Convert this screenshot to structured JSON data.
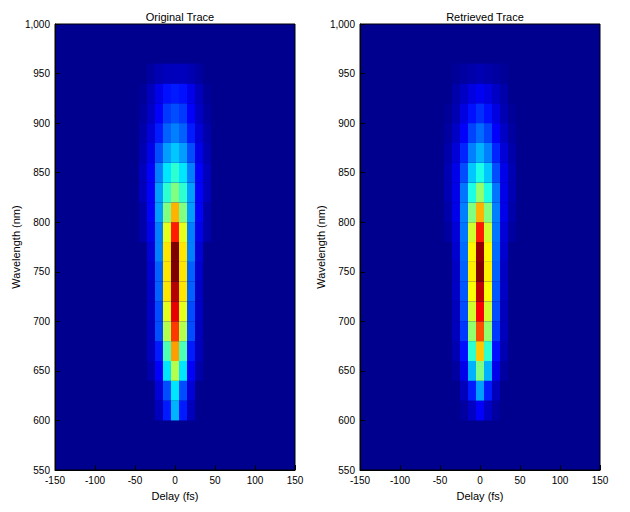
{
  "chart_data": [
    {
      "type": "heatmap",
      "title": "Original Trace",
      "x_label": "Delay (fs)",
      "y_label": "Wavelength (nm)",
      "xlim": [
        -150,
        150
      ],
      "ylim": [
        550,
        1000
      ],
      "xticks": [
        -150,
        -100,
        -50,
        0,
        50,
        100,
        150
      ],
      "yticks": [
        550,
        600,
        650,
        700,
        750,
        800,
        850,
        900,
        950,
        1000
      ],
      "zlim": [
        0,
        1
      ],
      "x": [
        -40,
        -30,
        -20,
        -10,
        0,
        10,
        20,
        30,
        40
      ],
      "y": [
        610,
        630,
        650,
        670,
        690,
        710,
        730,
        750,
        770,
        790,
        810,
        830,
        850,
        870,
        890,
        910,
        930,
        950
      ],
      "z": [
        [
          0,
          0,
          0.05,
          0.15,
          0.3,
          0.15,
          0.05,
          0,
          0
        ],
        [
          0,
          0,
          0.08,
          0.2,
          0.35,
          0.2,
          0.08,
          0,
          0
        ],
        [
          0,
          0.03,
          0.12,
          0.35,
          0.55,
          0.35,
          0.12,
          0.03,
          0
        ],
        [
          0,
          0.05,
          0.15,
          0.45,
          0.72,
          0.45,
          0.15,
          0.05,
          0
        ],
        [
          0,
          0.05,
          0.2,
          0.55,
          0.82,
          0.55,
          0.2,
          0.05,
          0
        ],
        [
          0,
          0.06,
          0.2,
          0.6,
          0.9,
          0.6,
          0.2,
          0.06,
          0
        ],
        [
          0,
          0.06,
          0.22,
          0.65,
          0.95,
          0.65,
          0.22,
          0.06,
          0
        ],
        [
          0,
          0.07,
          0.22,
          0.65,
          1.0,
          0.65,
          0.22,
          0.07,
          0
        ],
        [
          0,
          0.08,
          0.25,
          0.65,
          1.0,
          0.65,
          0.25,
          0.08,
          0
        ],
        [
          0.03,
          0.1,
          0.25,
          0.6,
          0.85,
          0.6,
          0.25,
          0.1,
          0.03
        ],
        [
          0.03,
          0.12,
          0.28,
          0.5,
          0.7,
          0.5,
          0.28,
          0.12,
          0.03
        ],
        [
          0.05,
          0.12,
          0.28,
          0.42,
          0.5,
          0.42,
          0.28,
          0.12,
          0.05
        ],
        [
          0.05,
          0.12,
          0.25,
          0.35,
          0.42,
          0.35,
          0.25,
          0.12,
          0.05
        ],
        [
          0.04,
          0.1,
          0.2,
          0.28,
          0.32,
          0.28,
          0.2,
          0.1,
          0.04
        ],
        [
          0.03,
          0.08,
          0.15,
          0.22,
          0.25,
          0.22,
          0.15,
          0.08,
          0.03
        ],
        [
          0.02,
          0.06,
          0.12,
          0.18,
          0.2,
          0.18,
          0.12,
          0.06,
          0.02
        ],
        [
          0.01,
          0.05,
          0.1,
          0.14,
          0.15,
          0.14,
          0.1,
          0.05,
          0.01
        ],
        [
          0,
          0.02,
          0.04,
          0.05,
          0.05,
          0.05,
          0.04,
          0.02,
          0
        ]
      ]
    },
    {
      "type": "heatmap",
      "title": "Retrieved Trace",
      "x_label": "Delay (fs)",
      "y_label": "Wavelength (nm)",
      "xlim": [
        -150,
        150
      ],
      "ylim": [
        550,
        1000
      ],
      "xticks": [
        -150,
        -100,
        -50,
        0,
        50,
        100,
        150
      ],
      "yticks": [
        550,
        600,
        650,
        700,
        750,
        800,
        850,
        900,
        950,
        1000
      ],
      "zlim": [
        0,
        1
      ],
      "x": [
        -40,
        -30,
        -20,
        -10,
        0,
        10,
        20,
        30,
        40
      ],
      "y": [
        610,
        630,
        650,
        670,
        690,
        710,
        730,
        750,
        770,
        790,
        810,
        830,
        850,
        870,
        890,
        910,
        930,
        950
      ],
      "z": [
        [
          0,
          0,
          0.02,
          0.06,
          0.12,
          0.06,
          0.02,
          0,
          0
        ],
        [
          0,
          0,
          0.05,
          0.15,
          0.28,
          0.15,
          0.05,
          0,
          0
        ],
        [
          0,
          0.02,
          0.1,
          0.3,
          0.5,
          0.3,
          0.1,
          0.02,
          0
        ],
        [
          0,
          0.04,
          0.14,
          0.42,
          0.68,
          0.42,
          0.14,
          0.04,
          0
        ],
        [
          0,
          0.05,
          0.18,
          0.52,
          0.8,
          0.52,
          0.18,
          0.05,
          0
        ],
        [
          0,
          0.05,
          0.2,
          0.58,
          0.88,
          0.58,
          0.2,
          0.05,
          0
        ],
        [
          0,
          0.06,
          0.21,
          0.62,
          0.94,
          0.62,
          0.21,
          0.06,
          0
        ],
        [
          0,
          0.06,
          0.22,
          0.64,
          1.0,
          0.64,
          0.22,
          0.06,
          0
        ],
        [
          0,
          0.07,
          0.23,
          0.63,
          0.98,
          0.63,
          0.23,
          0.07,
          0
        ],
        [
          0.02,
          0.08,
          0.24,
          0.58,
          0.85,
          0.58,
          0.24,
          0.08,
          0.02
        ],
        [
          0.03,
          0.1,
          0.25,
          0.5,
          0.7,
          0.5,
          0.25,
          0.1,
          0.03
        ],
        [
          0.04,
          0.1,
          0.24,
          0.4,
          0.52,
          0.4,
          0.24,
          0.1,
          0.04
        ],
        [
          0.04,
          0.1,
          0.2,
          0.32,
          0.4,
          0.32,
          0.2,
          0.1,
          0.04
        ],
        [
          0.03,
          0.08,
          0.16,
          0.25,
          0.3,
          0.25,
          0.16,
          0.08,
          0.03
        ],
        [
          0.02,
          0.06,
          0.12,
          0.19,
          0.23,
          0.19,
          0.12,
          0.06,
          0.02
        ],
        [
          0.01,
          0.04,
          0.09,
          0.14,
          0.17,
          0.14,
          0.09,
          0.04,
          0.01
        ],
        [
          0,
          0.03,
          0.06,
          0.09,
          0.11,
          0.09,
          0.06,
          0.03,
          0
        ],
        [
          0,
          0.01,
          0.02,
          0.03,
          0.04,
          0.03,
          0.02,
          0.01,
          0
        ]
      ]
    }
  ]
}
